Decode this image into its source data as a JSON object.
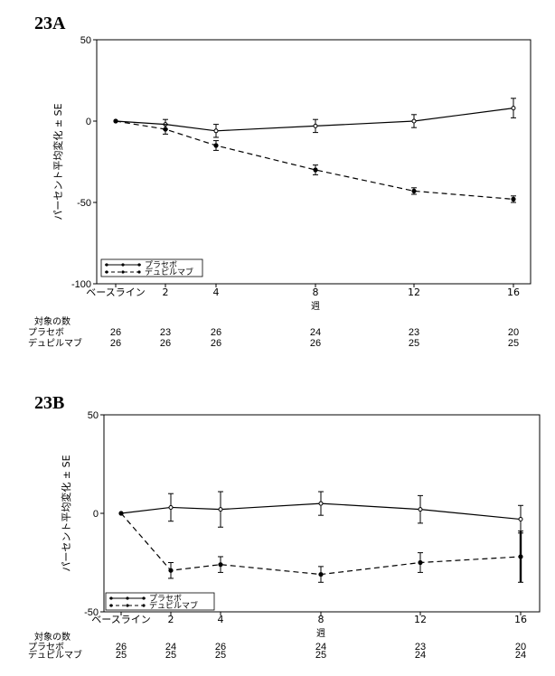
{
  "chart_data": [
    {
      "panel": "23A",
      "type": "line",
      "xlabel": "週",
      "ylabel": "パーセント平均変化 ± SE",
      "ylim": [
        -100,
        50
      ],
      "yticks": [
        50,
        0,
        -50,
        -100
      ],
      "categories": [
        "ベースライン",
        "2",
        "4",
        "8",
        "12",
        "16"
      ],
      "x": [
        0,
        2,
        4,
        8,
        12,
        16
      ],
      "series": [
        {
          "name": "プラセボ",
          "style": "solid",
          "values": [
            0,
            -2,
            -6,
            -3,
            0,
            8
          ],
          "se": [
            0,
            3,
            4,
            4,
            4,
            6
          ]
        },
        {
          "name": "デュピルマブ",
          "style": "dashed",
          "values": [
            0,
            -5,
            -15,
            -30,
            -43,
            -48
          ],
          "se": [
            0,
            3,
            3,
            3,
            2,
            2
          ]
        }
      ],
      "legend_position": "bottom-left",
      "n_table": {
        "label": "対象の数",
        "rows": [
          {
            "name": "プラセボ",
            "values": [
              "26",
              "23",
              "26",
              "24",
              "23",
              "20"
            ]
          },
          {
            "name": "デュピルマブ",
            "values": [
              "26",
              "26",
              "26",
              "26",
              "25",
              "25"
            ]
          }
        ]
      }
    },
    {
      "panel": "23B",
      "type": "line",
      "xlabel": "週",
      "ylabel": "パーセント平均変化 ± SE",
      "ylim": [
        -50,
        50
      ],
      "yticks": [
        50,
        0,
        -50
      ],
      "categories": [
        "ベースライン",
        "2",
        "4",
        "8",
        "12",
        "16"
      ],
      "x": [
        0,
        2,
        4,
        8,
        12,
        16
      ],
      "series": [
        {
          "name": "プラセボ",
          "style": "solid",
          "values": [
            0,
            3,
            2,
            5,
            2,
            -3
          ],
          "se": [
            0,
            7,
            9,
            6,
            7,
            7
          ]
        },
        {
          "name": "デュピルマブ",
          "style": "dashed",
          "values": [
            0,
            -29,
            -26,
            -31,
            -25,
            -22
          ],
          "se": [
            0,
            4,
            4,
            4,
            5,
            13
          ]
        }
      ],
      "legend_position": "bottom-left",
      "n_table": {
        "label": "対象の数",
        "rows": [
          {
            "name": "プラセボ",
            "values": [
              "26",
              "24",
              "26",
              "24",
              "23",
              "20"
            ]
          },
          {
            "name": "デュピルマブ",
            "values": [
              "25",
              "25",
              "25",
              "25",
              "24",
              "24"
            ]
          }
        ]
      }
    }
  ]
}
